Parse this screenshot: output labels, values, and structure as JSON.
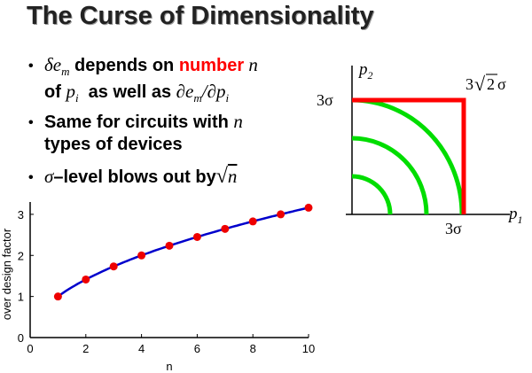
{
  "slide": {
    "title": "The Curse of Dimensionality",
    "bullets": [
      {
        "part_a": "δe",
        "part_a_sub": "m",
        "part_b": " depends on ",
        "part_c": "number",
        "part_d": " n",
        "line2_a": "of ",
        "line2_b": "p",
        "line2_b_sub": "i",
        "line2_c": "  as well as ",
        "line2_d": "∂e",
        "line2_d_sub": "m",
        "line2_e": "/∂p",
        "line2_e_sub": "i"
      },
      {
        "line1": "Same for circuits with ",
        "line1_n": "n",
        "line2": "types of devices"
      },
      {
        "sigma": "σ",
        "text": "–level blows out by",
        "sqrt": "√",
        "n": "n"
      }
    ],
    "bullet_glyph": "•"
  },
  "diagram": {
    "p2_label": "p",
    "p2_sub": "2",
    "p1_label": "p",
    "p1_sub": "1",
    "y_mark": "3σ",
    "x_mark": "3σ",
    "corner_label_num": "3",
    "corner_label_root": "2",
    "corner_label_sigma": "σ",
    "arc_radii_in_sigma": [
      1,
      2,
      3
    ],
    "colors": {
      "arcs": "#00dd00",
      "square": "#ff0000",
      "axes": "#000000"
    }
  },
  "chart_data": {
    "type": "line",
    "xlabel": "n",
    "ylabel": "over design factor",
    "xlim": [
      0,
      10
    ],
    "ylim": [
      0,
      3.3
    ],
    "xticks": [
      "0",
      "2",
      "4",
      "6",
      "8",
      "10"
    ],
    "yticks": [
      "0",
      "1",
      "2",
      "3"
    ],
    "x": [
      1,
      2,
      3,
      4,
      5,
      6,
      7,
      8,
      9,
      10
    ],
    "series": [
      {
        "values": [
          1.0,
          1.414,
          1.732,
          2.0,
          2.236,
          2.449,
          2.646,
          2.828,
          3.0,
          3.162
        ],
        "line_color": "#0000cc",
        "marker_color": "#ee0000"
      }
    ]
  }
}
